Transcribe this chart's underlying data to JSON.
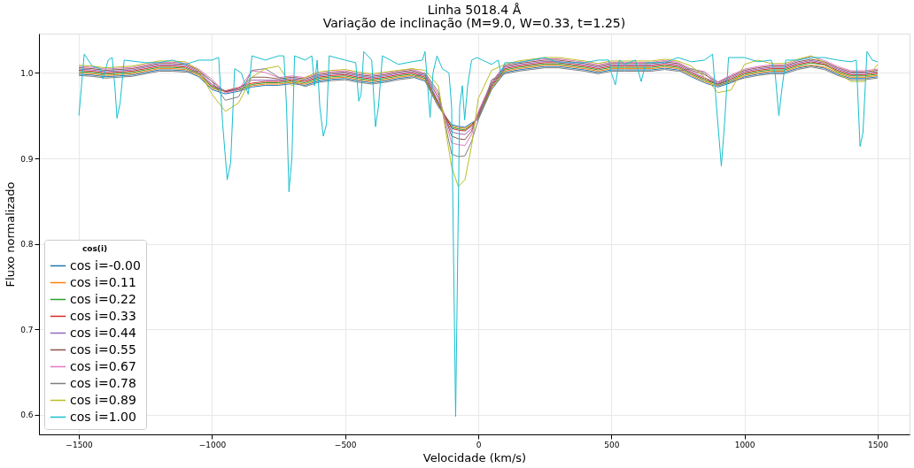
{
  "chart_data": {
    "type": "line",
    "title": "Linha 5018.4 Å",
    "subtitle": "Variação de inclinação (M=9.0, W=0.33, t=1.25)",
    "xlabel": "Velocidade (km/s)",
    "ylabel": "Fluxo normalizado",
    "legend_title": "cos(i)",
    "legend": "bottom left",
    "grid": true,
    "line_style": "solid",
    "marker": "none",
    "xlim": [
      -1650,
      1620
    ],
    "ylim": [
      0.577,
      1.046
    ],
    "xticks": [
      {
        "value": -1500,
        "label": "−1500"
      },
      {
        "value": -1000,
        "label": "−1000"
      },
      {
        "value": -500,
        "label": "−500"
      },
      0,
      500,
      1000,
      1500
    ],
    "yticks": [
      {
        "value": 0.6,
        "label": "0.6"
      },
      {
        "value": 0.7,
        "label": "0.7"
      },
      {
        "value": 0.8,
        "label": "0.8"
      },
      {
        "value": 0.9,
        "label": "0.9"
      },
      {
        "value": 1,
        "label": "1.0"
      }
    ],
    "x": [
      -1500,
      -1450,
      -1400,
      -1350,
      -1300,
      -1250,
      -1200,
      -1150,
      -1100,
      -1050,
      -1000,
      -950,
      -900,
      -850,
      -800,
      -750,
      -700,
      -650,
      -600,
      -550,
      -500,
      -450,
      -400,
      -350,
      -300,
      -250,
      -200,
      -150,
      -100,
      -75,
      -50,
      -25,
      0,
      50,
      100,
      150,
      200,
      250,
      300,
      350,
      400,
      450,
      500,
      550,
      600,
      650,
      700,
      750,
      800,
      850,
      900,
      950,
      1000,
      1050,
      1100,
      1150,
      1200,
      1250,
      1300,
      1350,
      1400,
      1450,
      1500
    ],
    "series": [
      {
        "name": "cos i=-0.00",
        "color": "#1f77b4",
        "values": [
          0.9985,
          0.9975,
          0.9955,
          0.9965,
          0.9975,
          1.0005,
          1.0035,
          1.0035,
          1.0025,
          0.9955,
          0.9805,
          0.9755,
          0.9785,
          0.9835,
          0.9855,
          0.9855,
          0.9875,
          0.9855,
          0.9905,
          0.9925,
          0.9935,
          0.9905,
          0.9885,
          0.9905,
          0.9935,
          0.9955,
          0.9905,
          0.9605,
          0.9395,
          0.9375,
          0.9365,
          0.9415,
          0.9455,
          0.9805,
          1.0005,
          1.0035,
          1.0055,
          1.0075,
          1.0075,
          1.0055,
          1.0035,
          1.0005,
          1.0035,
          1.0035,
          1.0035,
          1.0035,
          1.0055,
          1.0035,
          0.9955,
          0.9885,
          0.9835,
          0.9885,
          0.9955,
          0.9985,
          1.0005,
          1.0005,
          1.0055,
          1.0085,
          1.0055,
          0.9985,
          0.9935,
          0.9935,
          0.9955
        ]
      },
      {
        "name": "cos i=0.11",
        "color": "#ff7f0e",
        "values": [
          1.0,
          0.999,
          0.997,
          0.998,
          0.999,
          1.002,
          1.005,
          1.005,
          1.004,
          0.997,
          0.982,
          0.978,
          0.98,
          0.985,
          0.987,
          0.987,
          0.989,
          0.987,
          0.992,
          0.994,
          0.995,
          0.992,
          0.99,
          0.992,
          0.995,
          0.997,
          0.992,
          0.962,
          0.938,
          0.936,
          0.935,
          0.94,
          0.947,
          0.982,
          1.002,
          1.005,
          1.007,
          1.009,
          1.009,
          1.007,
          1.005,
          1.002,
          1.005,
          1.005,
          1.005,
          1.005,
          1.007,
          1.005,
          0.997,
          0.99,
          0.985,
          0.99,
          0.997,
          1.0,
          1.002,
          1.002,
          1.007,
          1.009,
          1.007,
          1.0,
          0.995,
          0.995,
          0.997
        ]
      },
      {
        "name": "cos i=0.22",
        "color": "#2ca02c",
        "values": [
          1.0015,
          1.0005,
          0.9985,
          0.9995,
          1.0005,
          1.0035,
          1.0065,
          1.0065,
          1.0055,
          0.9985,
          0.9835,
          0.9785,
          0.9805,
          0.9865,
          0.9885,
          0.9885,
          0.9905,
          0.9885,
          0.9935,
          0.9955,
          0.9965,
          0.9935,
          0.9915,
          0.9935,
          0.9965,
          0.9985,
          0.9935,
          0.9635,
          0.9365,
          0.9345,
          0.9335,
          0.939,
          0.9485,
          0.9835,
          1.0035,
          1.0065,
          1.0085,
          1.0105,
          1.0105,
          1.0085,
          1.0065,
          1.0035,
          1.0065,
          1.0065,
          1.0065,
          1.0065,
          1.0085,
          1.0065,
          0.9985,
          0.9915,
          0.9865,
          0.9915,
          0.9985,
          1.0015,
          1.0035,
          1.0035,
          1.0085,
          1.0115,
          1.0095,
          1.0015,
          0.9965,
          0.9965,
          0.9985
        ]
      },
      {
        "name": "cos i=0.33",
        "color": "#d62728",
        "values": [
          1.003,
          1.002,
          1.0,
          1.001,
          1.002,
          1.005,
          1.008,
          1.008,
          1.007,
          1.0,
          0.985,
          0.979,
          0.983,
          0.988,
          0.99,
          0.99,
          0.992,
          0.99,
          0.995,
          0.997,
          0.998,
          0.995,
          0.993,
          0.995,
          0.998,
          1.0,
          0.995,
          0.965,
          0.935,
          0.933,
          0.932,
          0.938,
          0.95,
          0.985,
          1.005,
          1.008,
          1.01,
          1.012,
          1.012,
          1.01,
          1.008,
          1.005,
          1.008,
          1.008,
          1.008,
          1.008,
          1.01,
          1.008,
          1.0,
          0.993,
          0.987,
          0.993,
          1.0,
          1.003,
          1.005,
          1.005,
          1.01,
          1.013,
          1.01,
          1.003,
          0.998,
          0.998,
          1.0
        ]
      },
      {
        "name": "cos i=0.44",
        "color": "#9467bd",
        "values": [
          1.0045,
          1.0035,
          1.0015,
          1.0025,
          1.0035,
          1.0065,
          1.0095,
          1.0095,
          1.0085,
          1.0015,
          0.9865,
          0.9785,
          0.9815,
          0.9915,
          0.9915,
          0.9915,
          0.9935,
          0.9915,
          0.9965,
          0.9985,
          0.9995,
          0.9965,
          0.9945,
          0.9965,
          0.9995,
          1.0015,
          0.9965,
          0.9665,
          0.931,
          0.929,
          0.928,
          0.935,
          0.9515,
          0.9865,
          1.0065,
          1.0095,
          1.0115,
          1.0135,
          1.0135,
          1.0115,
          1.0095,
          1.0065,
          1.0095,
          1.0095,
          1.0095,
          1.0095,
          1.0115,
          1.0095,
          1.0015,
          0.9945,
          0.9875,
          0.9945,
          1.0015,
          1.0045,
          1.0065,
          1.0065,
          1.0115,
          1.0145,
          1.0115,
          1.0045,
          0.9995,
          0.9995,
          1.0015
        ]
      },
      {
        "name": "cos i=0.55",
        "color": "#8c564b",
        "values": [
          1.006,
          1.005,
          1.003,
          1.004,
          1.005,
          1.008,
          1.011,
          1.011,
          1.01,
          1.003,
          0.99,
          0.978,
          0.981,
          0.995,
          0.995,
          0.993,
          0.995,
          0.993,
          0.998,
          1.0,
          1.001,
          0.998,
          0.996,
          0.998,
          1.001,
          1.003,
          0.998,
          0.971,
          0.926,
          0.923,
          0.922,
          0.932,
          0.953,
          0.988,
          1.008,
          1.011,
          1.013,
          1.015,
          1.015,
          1.013,
          1.011,
          1.008,
          1.011,
          1.011,
          1.011,
          1.011,
          1.013,
          1.011,
          1.003,
          0.998,
          0.989,
          0.996,
          1.003,
          1.006,
          1.008,
          1.008,
          1.013,
          1.016,
          1.013,
          1.006,
          1.001,
          1.001,
          1.003
        ]
      },
      {
        "name": "cos i=0.67",
        "color": "#e377c2",
        "values": [
          1.0075,
          1.0065,
          1.0045,
          1.0055,
          1.0065,
          1.0095,
          1.0125,
          1.0125,
          1.0115,
          1.0045,
          0.9925,
          0.9765,
          0.9805,
          1.0025,
          1.0005,
          0.9945,
          0.9965,
          0.9945,
          0.9995,
          1.0015,
          1.0025,
          0.9995,
          0.9975,
          0.9995,
          1.0025,
          1.0045,
          0.9995,
          0.9745,
          0.918,
          0.916,
          0.915,
          0.928,
          0.9545,
          0.9895,
          1.0095,
          1.0125,
          1.0145,
          1.0165,
          1.0165,
          1.0145,
          1.0125,
          1.0095,
          1.0125,
          1.0125,
          1.0125,
          1.0125,
          1.0145,
          1.0125,
          1.0045,
          1.0015,
          0.9895,
          0.9975,
          1.0045,
          1.0075,
          1.0095,
          1.0095,
          1.0145,
          1.0195,
          1.0145,
          1.0075,
          1.0025,
          1.0025,
          1.0045
        ]
      },
      {
        "name": "cos i=0.78",
        "color": "#7f7f7f",
        "values": [
          0.997,
          0.996,
          0.994,
          0.995,
          0.996,
          0.999,
          1.002,
          1.002,
          1.001,
          1.002,
          0.99,
          0.968,
          0.972,
          1.003,
          1.005,
          0.995,
          0.99,
          0.984,
          0.989,
          0.991,
          0.992,
          0.989,
          0.987,
          0.989,
          0.992,
          0.994,
          1.0,
          0.978,
          0.905,
          0.902,
          0.903,
          0.92,
          0.945,
          0.992,
          0.999,
          1.002,
          1.004,
          1.006,
          1.006,
          1.004,
          1.002,
          0.999,
          1.002,
          1.002,
          1.002,
          1.002,
          1.004,
          1.002,
          1.005,
          1.0,
          0.985,
          0.99,
          0.994,
          0.997,
          0.999,
          0.999,
          1.004,
          1.007,
          1.004,
          0.997,
          0.992,
          0.992,
          0.994
        ]
      },
      {
        "name": "cos i=0.89",
        "color": "#bcbd22",
        "values": [
          1.009,
          1.008,
          1.006,
          1.007,
          1.008,
          1.011,
          1.014,
          1.014,
          1.013,
          1.003,
          0.975,
          0.955,
          0.965,
          0.995,
          1.005,
          1.008,
          0.985,
          0.995,
          1.001,
          1.003,
          1.004,
          1.001,
          0.999,
          1.001,
          1.003,
          1.005,
          1.003,
          0.985,
          0.89,
          0.867,
          0.875,
          0.915,
          0.97,
          1.003,
          1.01,
          1.014,
          1.016,
          1.018,
          1.018,
          1.016,
          1.014,
          1.011,
          1.014,
          1.014,
          1.014,
          1.014,
          1.016,
          1.014,
          1.008,
          0.995,
          0.977,
          0.98,
          1.01,
          1.015,
          1.011,
          1.011,
          1.016,
          1.02,
          1.012,
          1.0,
          0.99,
          0.99,
          1.01
        ]
      },
      {
        "name": "cos i=1.00",
        "color": "#17becf",
        "x": [
          -1500,
          -1480,
          -1450,
          -1420,
          -1410,
          -1390,
          -1375,
          -1365,
          -1357,
          -1345,
          -1330,
          -1250,
          -1200,
          -1150,
          -1100,
          -1050,
          -1000,
          -975,
          -960,
          -943,
          -930,
          -915,
          -890,
          -864,
          -850,
          -800,
          -750,
          -730,
          -720,
          -711,
          -700,
          -690,
          -650,
          -625,
          -615,
          -605,
          -595,
          -582,
          -570,
          -560,
          -500,
          -460,
          -449,
          -440,
          -430,
          -400,
          -395,
          -386,
          -375,
          -360,
          -300,
          -250,
          -210,
          -200,
          -181,
          -170,
          -155,
          -135,
          -110,
          -100,
          -85,
          -70,
          -60,
          -51,
          -40,
          -25,
          -5,
          50,
          75,
          85,
          100,
          150,
          200,
          250,
          300,
          350,
          400,
          450,
          490,
          500,
          515,
          530,
          550,
          590,
          612,
          630,
          700,
          750,
          800,
          850,
          880,
          895,
          913,
          925,
          940,
          1000,
          1050,
          1100,
          1115,
          1129,
          1140,
          1155,
          1200,
          1250,
          1300,
          1350,
          1400,
          1420,
          1434,
          1445,
          1460,
          1480,
          1500
        ],
        "values": [
          0.95,
          1.022,
          1.008,
          1.005,
          0.993,
          1.015,
          1.018,
          0.985,
          0.947,
          0.965,
          1.015,
          1.012,
          1.012,
          1.015,
          1.01,
          1.015,
          1.015,
          1.018,
          0.94,
          0.875,
          0.895,
          1.005,
          1.0,
          0.975,
          1.02,
          1.015,
          1.02,
          1.02,
          0.96,
          0.861,
          0.9,
          1.02,
          1.015,
          1.02,
          0.985,
          1.015,
          0.96,
          0.926,
          0.94,
          1.02,
          1.015,
          1.012,
          0.967,
          0.975,
          1.025,
          1.015,
          0.985,
          0.937,
          0.96,
          1.02,
          1.01,
          1.013,
          1.015,
          1.025,
          0.948,
          1.0,
          1.02,
          1.005,
          1.0,
          0.96,
          0.598,
          0.96,
          0.985,
          0.945,
          0.985,
          1.015,
          1.018,
          1.01,
          1.015,
          0.999,
          1.012,
          1.012,
          1.015,
          1.018,
          1.012,
          1.012,
          1.012,
          1.015,
          1.015,
          1.0,
          0.986,
          1.015,
          1.01,
          1.015,
          0.99,
          1.012,
          1.012,
          1.018,
          1.013,
          1.015,
          1.022,
          0.96,
          0.891,
          0.94,
          1.018,
          1.018,
          1.013,
          1.015,
          1.0,
          0.95,
          0.98,
          1.015,
          1.015,
          1.018,
          1.018,
          1.015,
          1.013,
          1.015,
          0.914,
          0.93,
          1.025,
          1.015,
          1.013
        ]
      }
    ]
  }
}
